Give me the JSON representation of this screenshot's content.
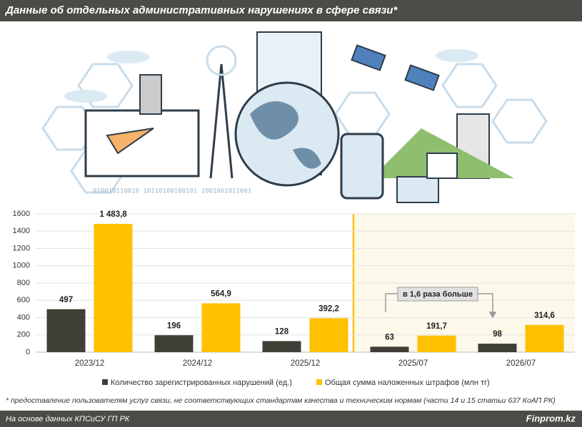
{
  "chart_data": {
    "type": "bar",
    "title": "Данные об отдельных административных нарушениях в сфере связи*",
    "categories": [
      "2023/12",
      "2024/12",
      "2025/12",
      "2025/07",
      "2026/07"
    ],
    "series": [
      {
        "name": "Количество зарегистрированных нарушений (ед.)",
        "color": "#3f3f38",
        "values": [
          497,
          196,
          128,
          63,
          98
        ]
      },
      {
        "name": "Общая сумма наложенных штрафов (млн тг)",
        "color": "#ffc000",
        "values": [
          1483.8,
          564.9,
          392.2,
          191.7,
          314.6
        ],
        "value_labels": [
          "1 483,8",
          "564,9",
          "392,2",
          "191,7",
          "314,6"
        ]
      }
    ],
    "ylim": [
      0,
      1600
    ],
    "yticks": [
      0,
      200,
      400,
      600,
      800,
      1000,
      1200,
      1400,
      1600
    ],
    "grid": true,
    "annotation": "в 1,6 раза больше",
    "footnote": "* предоставление пользователям услуг связи, не соответствующих стандартам качества и техническим нормам (части 14 и 15 статьи 637 КоАП РК)",
    "source": "На основе данных КПСиСУ ГП РК",
    "brand": "Finprom.kz"
  }
}
